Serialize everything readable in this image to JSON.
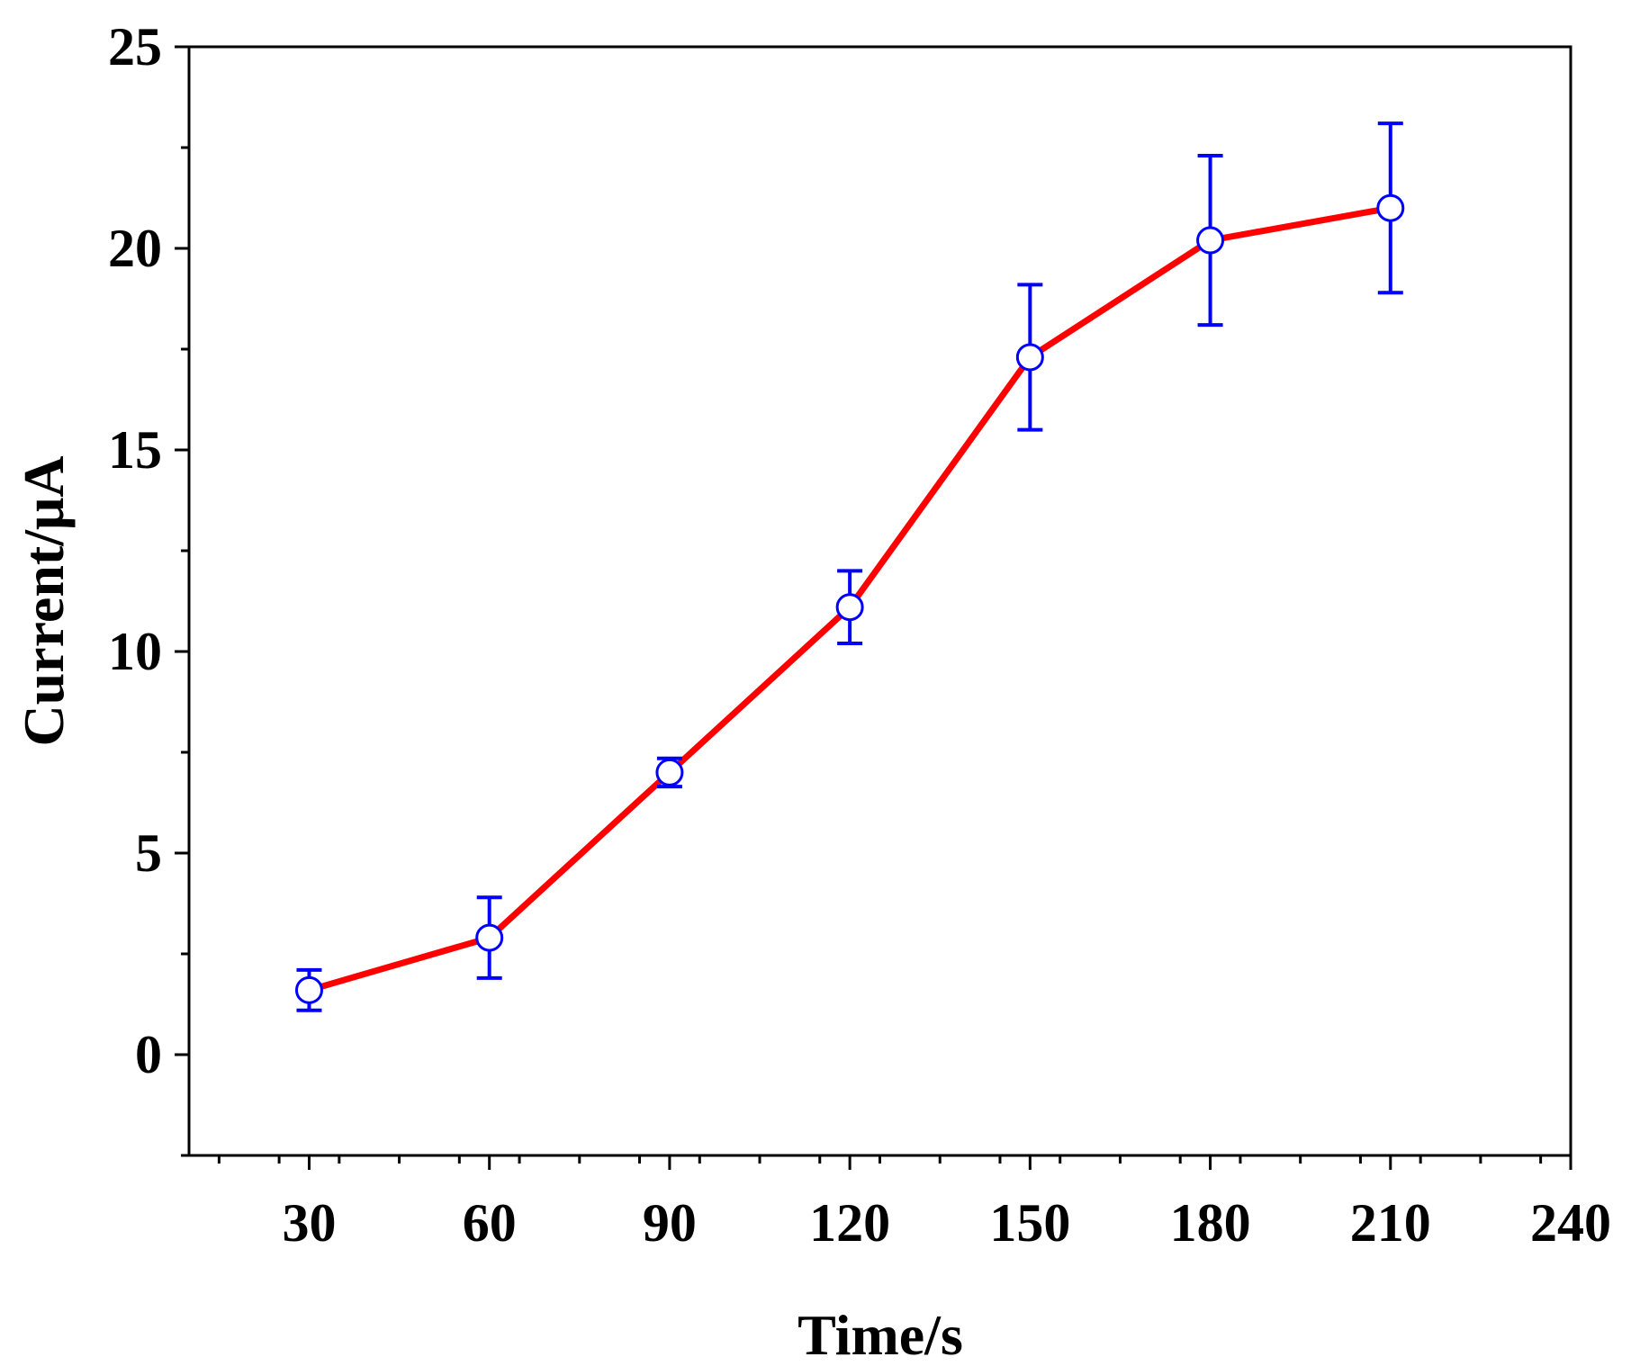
{
  "chart_data": {
    "type": "line",
    "title": "",
    "xlabel": "Time/s",
    "ylabel": "Current/μA",
    "xlim": [
      10,
      240
    ],
    "ylim": [
      -2.5,
      25
    ],
    "xticks": [
      30,
      60,
      90,
      120,
      150,
      180,
      210,
      240
    ],
    "yticks": [
      0,
      5,
      10,
      15,
      20,
      25
    ],
    "grid": false,
    "legend": "none",
    "series": [
      {
        "name": "Current",
        "line_color": "#ff0000",
        "marker": "open-circle",
        "marker_color": "#0000ff",
        "errorbar_color": "#0000ff",
        "x": [
          30,
          60,
          90,
          120,
          150,
          180,
          210
        ],
        "y": [
          1.6,
          2.9,
          7.0,
          11.1,
          17.3,
          20.2,
          21.0
        ],
        "yerr": [
          0.5,
          1.0,
          0.35,
          0.9,
          1.8,
          2.1,
          2.1
        ]
      }
    ]
  }
}
